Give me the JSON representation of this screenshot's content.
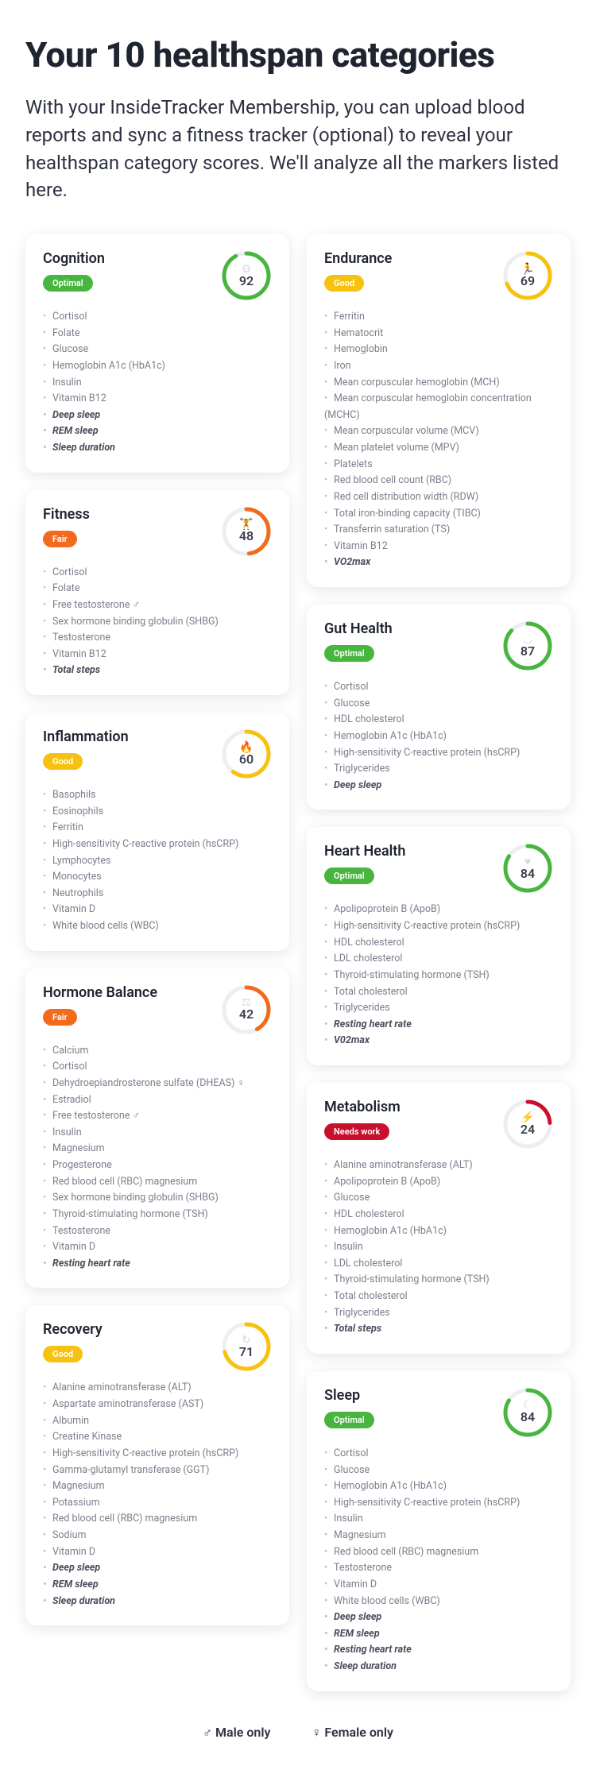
{
  "title": "Your 10 healthspan categories",
  "intro": "With your InsideTracker Membership, you can upload blood reports and sync a fitness tracker (optional) to reveal your healthspan category scores. We'll analyze all the markers listed here.",
  "legend": {
    "male": "♂ Male only",
    "female": "♀ Female only"
  },
  "colors": {
    "card_bg": "#ffffff",
    "gauge_track": "#eceef1",
    "optimal": "#48b63e",
    "good": "#f7c20f",
    "fair": "#f26b1d",
    "needs_work": "#c8102e",
    "icon": "#d6d8dd"
  },
  "gauge": {
    "size": 64,
    "stroke": 5,
    "radius": 28
  },
  "layout": {
    "left": [
      "cognition",
      "fitness",
      "inflammation",
      "hormone",
      "recovery"
    ],
    "right": [
      "endurance",
      "gut",
      "heart",
      "metabolism",
      "sleep"
    ]
  },
  "cards": {
    "cognition": {
      "title": "Cognition",
      "score": 92,
      "status": "optimal",
      "icon": "⚙",
      "markers": [
        "Cortisol",
        "Folate",
        "Glucose",
        "Hemoglobin A1c (HbA1c)",
        "Insulin",
        "Vitamin B12"
      ],
      "bold_markers": [
        "Deep sleep",
        "REM sleep",
        "Sleep duration"
      ]
    },
    "fitness": {
      "title": "Fitness",
      "score": 48,
      "status": "fair",
      "icon": "🏋",
      "markers": [
        "Cortisol",
        "Folate",
        "Free testosterone ♂",
        "Sex hormone binding globulin (SHBG)",
        "Testosterone",
        "Vitamin B12"
      ],
      "bold_markers": [
        "Total steps"
      ]
    },
    "inflammation": {
      "title": "Inflammation",
      "score": 60,
      "status": "good",
      "icon": "🔥",
      "markers": [
        "Basophils",
        "Eosinophils",
        "Ferritin",
        "High-sensitivity C-reactive protein (hsCRP)",
        "Lymphocytes",
        "Monocytes",
        "Neutrophils",
        "Vitamin D",
        "White blood cells (WBC)"
      ],
      "bold_markers": []
    },
    "hormone": {
      "title": "Hormone Balance",
      "score": 42,
      "status": "fair",
      "icon": "⚖",
      "markers": [
        "Calcium",
        "Cortisol",
        "Dehydroepiandrosterone sulfate (DHEAS) ♀",
        "Estradiol",
        "Free testosterone ♂",
        "Insulin",
        "Magnesium",
        "Progesterone",
        "Red blood cell (RBC) magnesium",
        "Sex hormone binding globulin (SHBG)",
        "Thyroid-stimulating hormone (TSH)",
        "Testosterone",
        "Vitamin D"
      ],
      "bold_markers": [
        "Resting heart rate"
      ]
    },
    "recovery": {
      "title": "Recovery",
      "score": 71,
      "status": "good",
      "icon": "↻",
      "markers": [
        "Alanine aminotransferase (ALT)",
        "Aspartate aminotransferase (AST)",
        "Albumin",
        "Creatine Kinase",
        "High-sensitivity C-reactive protein (hsCRP)",
        "Gamma-glutamyl transferase (GGT)",
        "Magnesium",
        "Potassium",
        "Red blood cell (RBC) magnesium",
        "Sodium",
        "Vitamin D"
      ],
      "bold_markers": [
        "Deep sleep",
        "REM sleep",
        "Sleep duration"
      ]
    },
    "endurance": {
      "title": "Endurance",
      "score": 69,
      "status": "good",
      "icon": "🏃",
      "markers": [
        "Ferritin",
        "Hematocrit",
        "Hemoglobin",
        "Iron",
        "Mean corpuscular hemoglobin (MCH)",
        "Mean corpuscular hemoglobin concentration (MCHC)",
        "Mean corpuscular volume (MCV)",
        "Mean platelet volume (MPV)",
        "Platelets",
        "Red blood cell count (RBC)",
        "Red cell distribution width (RDW)",
        "Total iron-binding capacity (TIBC)",
        "Transferrin saturation (TS)",
        "Vitamin B12"
      ],
      "bold_markers": [
        "VO2max"
      ]
    },
    "gut": {
      "title": "Gut Health",
      "score": 87,
      "status": "optimal",
      "icon": "◡",
      "markers": [
        "Cortisol",
        "Glucose",
        "HDL cholesterol",
        "Hemoglobin A1c (HbA1c)",
        "High-sensitivity C-reactive protein (hsCRP)",
        "Triglycerides"
      ],
      "bold_markers": [
        "Deep sleep"
      ]
    },
    "heart": {
      "title": "Heart Health",
      "score": 84,
      "status": "optimal",
      "icon": "♥",
      "markers": [
        "Apolipoprotein B (ApoB)",
        "High-sensitivity C-reactive protein (hsCRP)",
        "HDL cholesterol",
        "LDL cholesterol",
        "Thyroid-stimulating hormone (TSH)",
        "Total cholesterol",
        "Triglycerides"
      ],
      "bold_markers": [
        "Resting heart rate",
        "V02max"
      ]
    },
    "metabolism": {
      "title": "Metabolism",
      "score": 24,
      "status": "needs_work",
      "icon": "⚡",
      "markers": [
        "Alanine aminotransferase (ALT)",
        "Apolipoprotein B (ApoB)",
        "Glucose",
        "HDL cholesterol",
        "Hemoglobin A1c (HbA1c)",
        "Insulin",
        "LDL cholesterol",
        "Thyroid-stimulating hormone (TSH)",
        "Total cholesterol",
        "Triglycerides"
      ],
      "bold_markers": [
        "Total steps"
      ]
    },
    "sleep": {
      "title": "Sleep",
      "score": 84,
      "status": "optimal",
      "icon": "☾",
      "markers": [
        "Cortisol",
        "Glucose",
        "Hemoglobin A1c (HbA1c)",
        "High-sensitivity C-reactive protein (hsCRP)",
        "Insulin",
        "Magnesium",
        "Red blood cell (RBC) magnesium",
        "Testosterone",
        "Vitamin D",
        "White blood cells (WBC)"
      ],
      "bold_markers": [
        "Deep sleep",
        "REM sleep",
        "Resting heart rate",
        "Sleep duration"
      ]
    }
  },
  "status_labels": {
    "optimal": "Optimal",
    "good": "Good",
    "fair": "Fair",
    "needs_work": "Needs work"
  }
}
